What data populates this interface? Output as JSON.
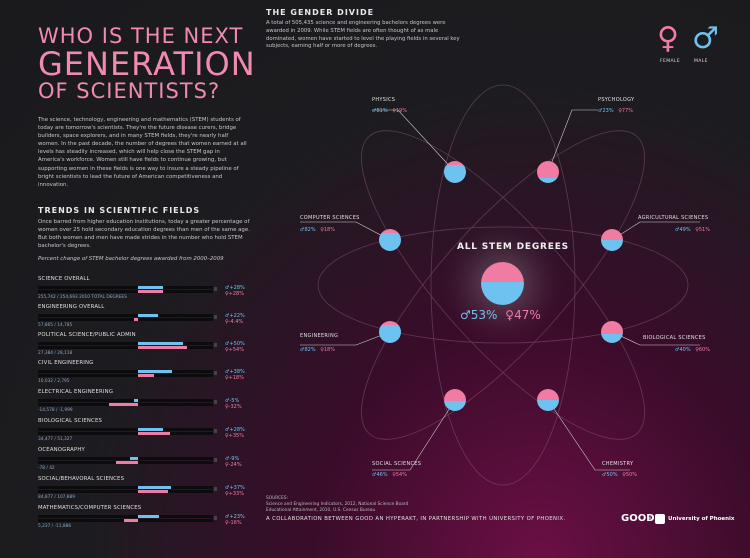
{
  "title": {
    "line1": "WHO IS THE NEXT",
    "line2": "GENERATION",
    "line3": "OF SCIENTISTS?"
  },
  "intro": "The science, technology, engineering and mathematics (STEM) students of today are tomorrow's scientists. They're the future disease curers, bridge builders, space explorers, and in many STEM fields, they're nearly half women. In the past decade, the number of degrees that women earned at all levels has steadily increased, which will help close the STEM gap in America's workforce. Women still have fields to continue growing, but supporting women in these fields is one way to insure a steady pipeline of bright scientists to lead the future of American competitiveness and innovation.",
  "trends": {
    "title": "TRENDS IN SCIENTIFIC FIELDS",
    "text": "Once barred from higher education institutions, today a greater percentage of women over 25 hold secondary education degrees than men of the same age. But both women and men have made strides in the number who hold STEM bachelor's degrees.",
    "note": "Percent change of STEM bachelor degrees awarded from 2000–2009",
    "fields": [
      {
        "name": "SCIENCE OVERALL",
        "nums": "255,742 / 254,693  2010 TOTAL DEGREES",
        "male": "+28%",
        "female": "+28%",
        "male_frac": 0.28,
        "female_frac": 0.28
      },
      {
        "name": "ENGINEERING OVERALL",
        "nums": "57,865 / 14,785",
        "male": "+22%",
        "female": "-4.4%",
        "male_frac": 0.22,
        "female_frac": -0.044
      },
      {
        "name": "POLITICAL SCIENCE/PUBLIC ADMIN",
        "nums": "27,384 / 28,118",
        "male": "+50%",
        "female": "+54%",
        "male_frac": 0.5,
        "female_frac": 0.54
      },
      {
        "name": "CIVIL ENGINEERING",
        "nums": "10,032 / 2,795",
        "male": "+38%",
        "female": "+18%",
        "male_frac": 0.38,
        "female_frac": 0.18
      },
      {
        "name": "ELECTRICAL ENGINEERING",
        "nums": "-14,578 / -1,999",
        "male": "-5%",
        "female": "-32%",
        "male_frac": -0.05,
        "female_frac": -0.32
      },
      {
        "name": "BIOLOGICAL SCIENCES",
        "nums": "34,477 / 51,327",
        "male": "+28%",
        "female": "+35%",
        "male_frac": 0.28,
        "female_frac": 0.35
      },
      {
        "name": "OCEANOGRAPHY",
        "nums": "-78 / 42",
        "male": "-9%",
        "female": "-24%",
        "male_frac": -0.09,
        "female_frac": -0.24
      },
      {
        "name": "SOCIAL/BEHAVORAL SCIENCES",
        "nums": "84,877 / 107,889",
        "male": "+37%",
        "female": "+33%",
        "male_frac": 0.37,
        "female_frac": 0.33
      },
      {
        "name": "MATHEMATICS/COMPUTER SCIENCES",
        "nums": "5,237 / -11,886",
        "male": "+23%",
        "female": "-16%",
        "male_frac": 0.23,
        "female_frac": -0.16
      }
    ]
  },
  "gender_divide": {
    "title": "THE GENDER DIVIDE",
    "text": "A total of 505,435 science and engineering bachelors degrees were awarded in 2009. While STEM fields are often thought of as male dominated, women have started to level the playing fields in several key subjects, earning half or more of degrees.",
    "female_label": "FEMALE",
    "male_label": "MALE",
    "female_symbol": "♀",
    "male_symbol": "♂",
    "colors": {
      "female": "#f07ba3",
      "male": "#6ec2f0"
    },
    "all": {
      "label": "ALL STEM DEGREES",
      "male": "53%",
      "female": "47%",
      "male_frac": 0.53,
      "female_frac": 0.47
    },
    "nodes": [
      {
        "name": "PHYSICS",
        "male": "81%",
        "female": "19%",
        "male_frac": 0.81,
        "female_frac": 0.19
      },
      {
        "name": "PSYCHOLOGY",
        "male": "23%",
        "female": "77%",
        "male_frac": 0.23,
        "female_frac": 0.77
      },
      {
        "name": "COMPUTER SCIENCES",
        "male": "82%",
        "female": "18%",
        "male_frac": 0.82,
        "female_frac": 0.18
      },
      {
        "name": "AGRICULTURAL SCIENCES",
        "male": "49%",
        "female": "51%",
        "male_frac": 0.49,
        "female_frac": 0.51
      },
      {
        "name": "ENGINEERING",
        "male": "82%",
        "female": "18%",
        "male_frac": 0.82,
        "female_frac": 0.18
      },
      {
        "name": "BIOLOGICAL SCIENCES",
        "male": "40%",
        "female": "60%",
        "male_frac": 0.4,
        "female_frac": 0.6
      },
      {
        "name": "SOCIAL SCIENCES",
        "male": "46%",
        "female": "54%",
        "male_frac": 0.46,
        "female_frac": 0.54
      },
      {
        "name": "CHEMISTRY",
        "male": "50%",
        "female": "50%",
        "male_frac": 0.5,
        "female_frac": 0.5
      }
    ]
  },
  "sources": {
    "label": "SOURCES:",
    "line1": "Science and Engineering Indicators, 2012, National Science Board",
    "line2": "Educational Attainment, 2010, U.S. Census Bureau"
  },
  "collab": "A COLLABORATION BETWEEN GOOD AN HYPERAKT, IN PARTNERSHIP WITH UNIVERSITY OF PHOENIX.",
  "logos": {
    "good": "GOOD",
    "x": "×",
    "uop": "University of Phoenix"
  }
}
